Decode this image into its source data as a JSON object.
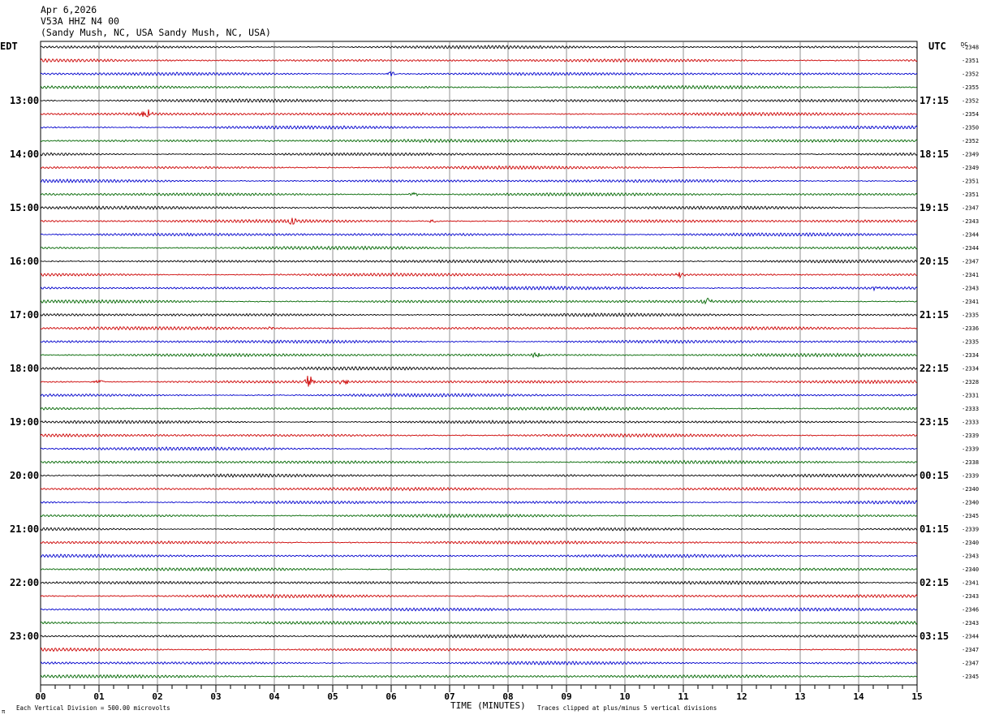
{
  "header": {
    "date": "Apr 6,2026",
    "station": "V53A HHZ N4 00",
    "location": "(Sandy Mush, NC, USA Sandy Mush, NC, USA)"
  },
  "labels": {
    "left_tz": "EDT",
    "right_tz": "UTC",
    "dc_label": "DC",
    "x_title": "TIME (MINUTES)",
    "footer_left": "Each Vertical Division =  500.00 microvolts",
    "footer_right": "Traces clipped at plus/minus 5 vertical divisions",
    "corner_mark": "π"
  },
  "chart_data": {
    "type": "line",
    "title": "",
    "xlabel": "TIME (MINUTES)",
    "x_ticks": [
      "00",
      "01",
      "02",
      "03",
      "04",
      "05",
      "06",
      "07",
      "08",
      "09",
      "10",
      "11",
      "12",
      "13",
      "14",
      "15"
    ],
    "xlim": [
      0,
      15
    ],
    "trace_colors": [
      "#000000",
      "#cc0000",
      "#0000cc",
      "#006600"
    ],
    "left_hour_labels": [
      "13:00",
      "14:00",
      "15:00",
      "16:00",
      "17:00",
      "18:00",
      "19:00",
      "20:00",
      "21:00",
      "22:00",
      "23:00"
    ],
    "right_hour_labels": [
      "17:15",
      "18:15",
      "19:15",
      "20:15",
      "21:15",
      "22:15",
      "23:15",
      "00:15",
      "01:15",
      "02:15",
      "03:15"
    ],
    "dc_offsets": [
      "-2348",
      "-2351",
      "-2352",
      "-2355",
      "-2352",
      "-2354",
      "-2350",
      "-2352",
      "-2349",
      "-2349",
      "-2351",
      "-2351",
      "-2347",
      "-2343",
      "-2344",
      "-2344",
      "-2347",
      "-2341",
      "-2343",
      "-2341",
      "-2335",
      "-2336",
      "-2335",
      "-2334",
      "-2334",
      "-2328",
      "-2331",
      "-2333",
      "-2333",
      "-2339",
      "-2339",
      "-2338",
      "-2339",
      "-2340",
      "-2340",
      "-2345",
      "-2339",
      "-2340",
      "-2343",
      "-2340",
      "-2341",
      "-2343",
      "-2346",
      "-2343",
      "-2344",
      "-2347",
      "-2347",
      "-2345"
    ],
    "events": [
      {
        "trace": 2,
        "minute": 6.0,
        "amp": 4
      },
      {
        "trace": 5,
        "minute": 1.8,
        "amp": 9
      },
      {
        "trace": 11,
        "minute": 6.4,
        "amp": 4
      },
      {
        "trace": 13,
        "minute": 4.3,
        "amp": 4
      },
      {
        "trace": 13,
        "minute": 6.7,
        "amp": 3
      },
      {
        "trace": 17,
        "minute": 10.95,
        "amp": 5
      },
      {
        "trace": 18,
        "minute": 14.3,
        "amp": 3
      },
      {
        "trace": 19,
        "minute": 11.4,
        "amp": 5
      },
      {
        "trace": 21,
        "minute": 3.9,
        "amp": 2
      },
      {
        "trace": 23,
        "minute": 8.5,
        "amp": 5
      },
      {
        "trace": 25,
        "minute": 4.6,
        "amp": 9
      },
      {
        "trace": 25,
        "minute": 5.2,
        "amp": 5
      },
      {
        "trace": 25,
        "minute": 1.0,
        "amp": 3
      }
    ]
  }
}
